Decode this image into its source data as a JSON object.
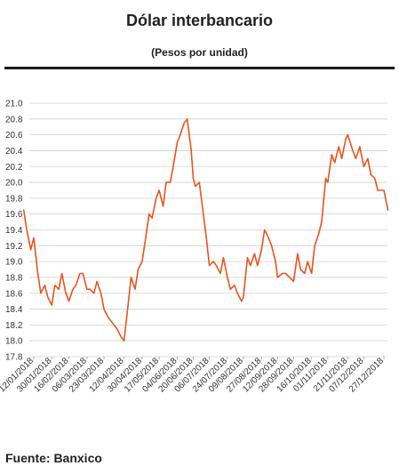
{
  "header": {
    "title": "Dólar interbancario",
    "subtitle": "(Pesos por unidad)"
  },
  "footer": {
    "source": "Fuente: Banxico"
  },
  "chart_data": {
    "type": "line",
    "title": "Dólar interbancario",
    "subtitle": "(Pesos por unidad)",
    "xlabel": "",
    "ylabel": "",
    "ylim": [
      17.8,
      21.0
    ],
    "yticks": [
      "21.0",
      "20.8",
      "20.6",
      "20.4",
      "20.2",
      "20.0",
      "19.8",
      "19.6",
      "19.4",
      "19.2",
      "19.0",
      "18.8",
      "18.6",
      "18.4",
      "18.2",
      "18.0",
      "17.8"
    ],
    "xticks": [
      "12/01/2018",
      "30/01/2018",
      "16/02/2018",
      "06/03/2018",
      "23/03/2018",
      "12/04/2018",
      "30/04/2018",
      "17/05/2018",
      "04/06/2018",
      "20/06/2018",
      "06/07/2018",
      "24/07/2018",
      "09/08/2018",
      "27/08/2018",
      "12/09/2018",
      "28/09/2018",
      "16/10/2018",
      "01/11/2018",
      "21/11/2018",
      "07/12/2018",
      "27/12/2018"
    ],
    "grid": true,
    "line_color": "#e8541e",
    "series": [
      {
        "x": [
          "2018-01-02",
          "2018-01-05",
          "2018-01-09",
          "2018-01-12",
          "2018-01-16",
          "2018-01-19",
          "2018-01-23",
          "2018-01-26",
          "2018-01-30",
          "2018-02-02",
          "2018-02-06",
          "2018-02-09",
          "2018-02-13",
          "2018-02-16",
          "2018-02-20",
          "2018-02-23",
          "2018-02-27",
          "2018-03-02",
          "2018-03-06",
          "2018-03-09",
          "2018-03-13",
          "2018-03-16",
          "2018-03-20",
          "2018-03-23",
          "2018-03-27",
          "2018-04-02",
          "2018-04-05",
          "2018-04-09",
          "2018-04-12",
          "2018-04-16",
          "2018-04-19",
          "2018-04-23",
          "2018-04-26",
          "2018-04-30",
          "2018-05-03",
          "2018-05-07",
          "2018-05-10",
          "2018-05-14",
          "2018-05-17",
          "2018-05-21",
          "2018-05-24",
          "2018-05-28",
          "2018-05-31",
          "2018-06-04",
          "2018-06-07",
          "2018-06-11",
          "2018-06-14",
          "2018-06-18",
          "2018-06-20",
          "2018-06-22",
          "2018-06-26",
          "2018-06-29",
          "2018-07-03",
          "2018-07-06",
          "2018-07-10",
          "2018-07-13",
          "2018-07-17",
          "2018-07-20",
          "2018-07-24",
          "2018-07-27",
          "2018-07-31",
          "2018-08-03",
          "2018-08-07",
          "2018-08-09",
          "2018-08-13",
          "2018-08-16",
          "2018-08-20",
          "2018-08-23",
          "2018-08-27",
          "2018-08-30",
          "2018-09-03",
          "2018-09-06",
          "2018-09-10",
          "2018-09-12",
          "2018-09-17",
          "2018-09-20",
          "2018-09-24",
          "2018-09-28",
          "2018-10-02",
          "2018-10-05",
          "2018-10-09",
          "2018-10-12",
          "2018-10-16",
          "2018-10-19",
          "2018-10-23",
          "2018-10-26",
          "2018-10-30",
          "2018-11-01",
          "2018-11-05",
          "2018-11-08",
          "2018-11-12",
          "2018-11-15",
          "2018-11-19",
          "2018-11-21",
          "2018-11-26",
          "2018-11-29",
          "2018-12-03",
          "2018-12-07",
          "2018-12-11",
          "2018-12-14",
          "2018-12-18",
          "2018-12-21",
          "2018-12-27",
          "2018-12-31"
        ],
        "y": [
          19.65,
          19.4,
          19.15,
          19.3,
          18.85,
          18.6,
          18.7,
          18.55,
          18.45,
          18.7,
          18.65,
          18.85,
          18.6,
          18.5,
          18.65,
          18.7,
          18.85,
          18.85,
          18.65,
          18.65,
          18.6,
          18.75,
          18.6,
          18.4,
          18.3,
          18.2,
          18.15,
          18.05,
          18.0,
          18.45,
          18.8,
          18.65,
          18.9,
          19.0,
          19.25,
          19.6,
          19.55,
          19.8,
          19.9,
          19.7,
          20.0,
          20.0,
          20.2,
          20.5,
          20.6,
          20.75,
          20.8,
          20.4,
          20.05,
          19.95,
          20.0,
          19.7,
          19.3,
          18.95,
          19.0,
          18.95,
          18.85,
          19.05,
          18.8,
          18.65,
          18.7,
          18.6,
          18.5,
          18.55,
          19.05,
          18.95,
          19.1,
          18.95,
          19.15,
          19.4,
          19.3,
          19.2,
          19.0,
          18.8,
          18.85,
          18.85,
          18.8,
          18.75,
          19.1,
          18.9,
          18.85,
          19.0,
          18.85,
          19.2,
          19.35,
          19.5,
          20.05,
          20.0,
          20.35,
          20.25,
          20.45,
          20.3,
          20.55,
          20.6,
          20.4,
          20.3,
          20.45,
          20.2,
          20.3,
          20.1,
          20.05,
          19.9,
          19.9,
          19.65
        ]
      }
    ]
  }
}
